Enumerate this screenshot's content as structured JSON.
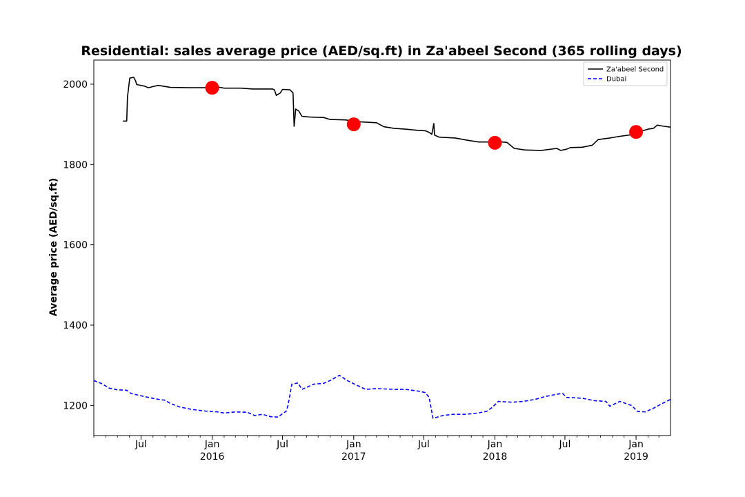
{
  "chart_data": {
    "type": "line",
    "title": "Residential: sales average price (AED/sq.ft) in Za'abeel Second (365 rolling days)",
    "xlabel": "",
    "ylabel": "Average price (AED/sq.ft)",
    "xlim": [
      "2015-03-01",
      "2019-03-31"
    ],
    "ylim": [
      1125,
      2060
    ],
    "y_ticks": [
      1200,
      1400,
      1600,
      1800,
      2000
    ],
    "x_ticks": [
      {
        "date": "2015-07-01",
        "label": "Jul",
        "year": ""
      },
      {
        "date": "2016-01-01",
        "label": "Jan",
        "year": "2016"
      },
      {
        "date": "2016-07-01",
        "label": "Jul",
        "year": ""
      },
      {
        "date": "2017-01-01",
        "label": "Jan",
        "year": "2017"
      },
      {
        "date": "2017-07-01",
        "label": "Jul",
        "year": ""
      },
      {
        "date": "2018-01-01",
        "label": "Jan",
        "year": "2018"
      },
      {
        "date": "2018-07-01",
        "label": "Jul",
        "year": ""
      },
      {
        "date": "2019-01-01",
        "label": "Jan",
        "year": "2019"
      }
    ],
    "legend_position": "top-right",
    "grid": false,
    "series": [
      {
        "name": "Za'abeel Second",
        "color": "#000000",
        "style": "solid",
        "points": [
          [
            "2015-05-15",
            1908
          ],
          [
            "2015-05-25",
            1908
          ],
          [
            "2015-05-27",
            1968
          ],
          [
            "2015-06-02",
            2015
          ],
          [
            "2015-06-12",
            2017
          ],
          [
            "2015-06-17",
            2008
          ],
          [
            "2015-06-20",
            1999
          ],
          [
            "2015-07-10",
            1995
          ],
          [
            "2015-07-20",
            1991
          ],
          [
            "2015-08-01",
            1994
          ],
          [
            "2015-08-15",
            1997
          ],
          [
            "2015-09-15",
            1992
          ],
          [
            "2015-11-01",
            1991
          ],
          [
            "2015-12-15",
            1991
          ],
          [
            "2016-01-15",
            1993
          ],
          [
            "2016-02-01",
            1990
          ],
          [
            "2016-03-15",
            1990
          ],
          [
            "2016-04-15",
            1988
          ],
          [
            "2016-05-15",
            1988
          ],
          [
            "2016-06-05",
            1988
          ],
          [
            "2016-06-10",
            1986
          ],
          [
            "2016-06-15",
            1972
          ],
          [
            "2016-06-25",
            1978
          ],
          [
            "2016-07-01",
            1987
          ],
          [
            "2016-07-20",
            1986
          ],
          [
            "2016-07-28",
            1978
          ],
          [
            "2016-07-31",
            1895
          ],
          [
            "2016-08-04",
            1938
          ],
          [
            "2016-08-12",
            1933
          ],
          [
            "2016-08-20",
            1920
          ],
          [
            "2016-09-10",
            1918
          ],
          [
            "2016-10-15",
            1917
          ],
          [
            "2016-11-01",
            1912
          ],
          [
            "2016-12-10",
            1911
          ],
          [
            "2017-01-20",
            1906
          ],
          [
            "2017-03-01",
            1904
          ],
          [
            "2017-03-20",
            1894
          ],
          [
            "2017-04-15",
            1890
          ],
          [
            "2017-05-15",
            1888
          ],
          [
            "2017-06-15",
            1885
          ],
          [
            "2017-07-05",
            1884
          ],
          [
            "2017-07-15",
            1880
          ],
          [
            "2017-07-22",
            1875
          ],
          [
            "2017-07-27",
            1902
          ],
          [
            "2017-07-29",
            1873
          ],
          [
            "2017-08-10",
            1868
          ],
          [
            "2017-09-20",
            1866
          ],
          [
            "2017-10-25",
            1860
          ],
          [
            "2017-11-20",
            1856
          ],
          [
            "2017-12-25",
            1856
          ],
          [
            "2018-01-20",
            1856
          ],
          [
            "2018-02-01",
            1855
          ],
          [
            "2018-02-20",
            1840
          ],
          [
            "2018-03-20",
            1836
          ],
          [
            "2018-05-01",
            1835
          ],
          [
            "2018-06-10",
            1840
          ],
          [
            "2018-06-20",
            1835
          ],
          [
            "2018-07-05",
            1838
          ],
          [
            "2018-07-15",
            1842
          ],
          [
            "2018-08-15",
            1843
          ],
          [
            "2018-09-10",
            1848
          ],
          [
            "2018-09-25",
            1862
          ],
          [
            "2018-10-25",
            1866
          ],
          [
            "2018-11-20",
            1870
          ],
          [
            "2018-12-20",
            1874
          ],
          [
            "2019-01-15",
            1883
          ],
          [
            "2019-02-01",
            1888
          ],
          [
            "2019-02-15",
            1890
          ],
          [
            "2019-02-25",
            1898
          ],
          [
            "2019-03-15",
            1895
          ],
          [
            "2019-03-31",
            1893
          ]
        ]
      },
      {
        "name": "Dubai",
        "color": "#0000ff",
        "style": "dashed",
        "points": [
          [
            "2015-03-01",
            1262
          ],
          [
            "2015-03-20",
            1255
          ],
          [
            "2015-04-10",
            1243
          ],
          [
            "2015-05-01",
            1239
          ],
          [
            "2015-05-25",
            1238
          ],
          [
            "2015-06-05",
            1230
          ],
          [
            "2015-07-01",
            1224
          ],
          [
            "2015-07-20",
            1220
          ],
          [
            "2015-08-10",
            1216
          ],
          [
            "2015-09-01",
            1213
          ],
          [
            "2015-09-15",
            1205
          ],
          [
            "2015-10-10",
            1196
          ],
          [
            "2015-11-10",
            1190
          ],
          [
            "2015-12-15",
            1186
          ],
          [
            "2016-01-15",
            1184
          ],
          [
            "2016-02-01",
            1181
          ],
          [
            "2016-03-01",
            1184
          ],
          [
            "2016-04-01",
            1183
          ],
          [
            "2016-04-20",
            1175
          ],
          [
            "2016-05-10",
            1178
          ],
          [
            "2016-06-01",
            1172
          ],
          [
            "2016-06-20",
            1171
          ],
          [
            "2016-07-01",
            1180
          ],
          [
            "2016-07-10",
            1185
          ],
          [
            "2016-07-15",
            1200
          ],
          [
            "2016-07-25",
            1253
          ],
          [
            "2016-08-10",
            1256
          ],
          [
            "2016-08-20",
            1240
          ],
          [
            "2016-09-20",
            1253
          ],
          [
            "2016-10-15",
            1255
          ],
          [
            "2016-11-01",
            1262
          ],
          [
            "2016-11-25",
            1275
          ],
          [
            "2016-12-15",
            1262
          ],
          [
            "2017-01-10",
            1250
          ],
          [
            "2017-02-01",
            1240
          ],
          [
            "2017-03-01",
            1242
          ],
          [
            "2017-04-15",
            1240
          ],
          [
            "2017-05-15",
            1240
          ],
          [
            "2017-06-15",
            1236
          ],
          [
            "2017-07-05",
            1232
          ],
          [
            "2017-07-15",
            1220
          ],
          [
            "2017-07-25",
            1168
          ],
          [
            "2017-08-20",
            1175
          ],
          [
            "2017-09-15",
            1178
          ],
          [
            "2017-10-15",
            1178
          ],
          [
            "2017-11-10",
            1180
          ],
          [
            "2017-12-10",
            1185
          ],
          [
            "2017-12-25",
            1195
          ],
          [
            "2018-01-10",
            1210
          ],
          [
            "2018-02-15",
            1208
          ],
          [
            "2018-03-15",
            1210
          ],
          [
            "2018-04-15",
            1215
          ],
          [
            "2018-05-10",
            1222
          ],
          [
            "2018-06-10",
            1228
          ],
          [
            "2018-06-25",
            1230
          ],
          [
            "2018-07-05",
            1220
          ],
          [
            "2018-08-15",
            1218
          ],
          [
            "2018-09-15",
            1212
          ],
          [
            "2018-10-15",
            1210
          ],
          [
            "2018-10-25",
            1198
          ],
          [
            "2018-11-20",
            1210
          ],
          [
            "2018-12-20",
            1200
          ],
          [
            "2019-01-05",
            1185
          ],
          [
            "2019-01-25",
            1184
          ],
          [
            "2019-02-15",
            1193
          ],
          [
            "2019-03-10",
            1205
          ],
          [
            "2019-03-31",
            1215
          ]
        ]
      }
    ],
    "markers": {
      "color": "#ff0000",
      "points": [
        [
          "2016-01-01",
          1991
        ],
        [
          "2017-01-01",
          1900
        ],
        [
          "2018-01-01",
          1854
        ],
        [
          "2019-01-01",
          1881
        ]
      ]
    }
  }
}
